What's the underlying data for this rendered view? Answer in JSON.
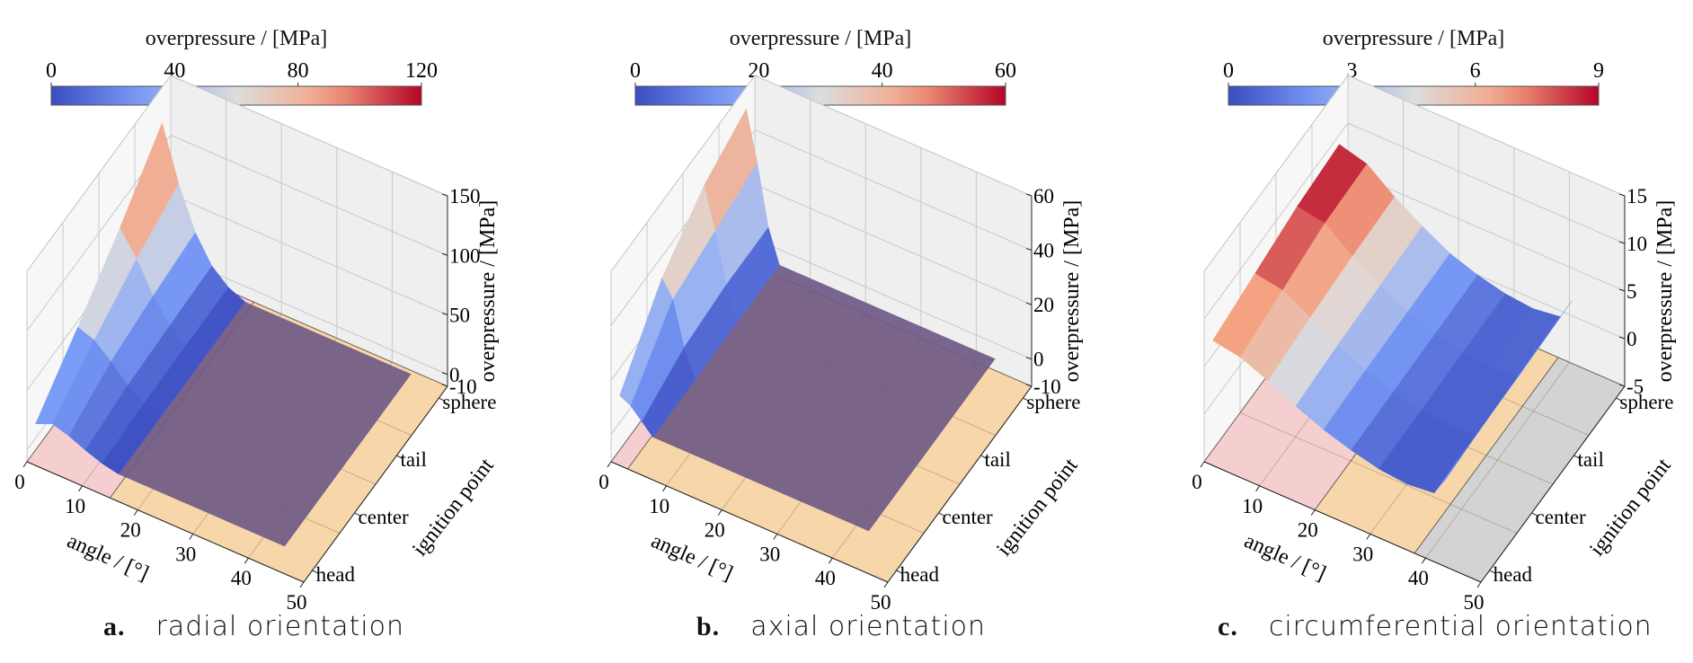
{
  "figure": {
    "panels": [
      {
        "id": "a",
        "label": "a.",
        "caption": "radial orientation"
      },
      {
        "id": "b",
        "label": "b.",
        "caption": "axial orientation"
      },
      {
        "id": "c",
        "label": "c.",
        "caption": "circumferential orientation"
      }
    ]
  },
  "chart_data": [
    {
      "type": "surface3d",
      "title": "radial orientation",
      "colorbar": {
        "label": "overpressure / [MPa]",
        "ticks": [
          "0",
          "40",
          "80",
          "120"
        ],
        "range": [
          0,
          120
        ],
        "colormap": "coolwarm"
      },
      "xlabel": "angle / [°]",
      "ylabel": "ignition point",
      "zlabel": "overpressure / [MPa]",
      "x_ticks": [
        "0",
        "10",
        "20",
        "30",
        "40",
        "50"
      ],
      "x_range": [
        0,
        50
      ],
      "y_ticks": [
        "head",
        "center",
        "tail",
        "sphere"
      ],
      "z_ticks": [
        "-10",
        "0",
        "50",
        "100",
        "150"
      ],
      "z_range": [
        -10,
        150
      ],
      "floor_regions": [
        {
          "from": 0,
          "to": 15,
          "color": "#f5cfcf"
        },
        {
          "from": 15,
          "to": 50,
          "color": "#f7d6a9"
        }
      ],
      "flat_region": {
        "from": 15,
        "to": 45,
        "color": "#6f5a86",
        "value": 0
      },
      "surface_x": [
        0,
        3,
        6,
        9,
        12,
        15
      ],
      "surface_series": [
        {
          "name": "head",
          "values": [
            12,
            18,
            14,
            8,
            3,
            0
          ]
        },
        {
          "name": "center",
          "values": [
            45,
            40,
            28,
            14,
            5,
            0
          ]
        },
        {
          "name": "tail",
          "values": [
            80,
            60,
            35,
            16,
            6,
            0
          ]
        },
        {
          "name": "sphere",
          "values": [
            120,
            75,
            40,
            18,
            6,
            0
          ]
        }
      ]
    },
    {
      "type": "surface3d",
      "title": "axial orientation",
      "colorbar": {
        "label": "overpressure / [MPa]",
        "ticks": [
          "0",
          "20",
          "40",
          "60"
        ],
        "range": [
          0,
          60
        ],
        "colormap": "coolwarm"
      },
      "xlabel": "angle / [°]",
      "ylabel": "ignition point",
      "zlabel": "overpressure / [MPa]",
      "x_ticks": [
        "0",
        "10",
        "20",
        "30",
        "40",
        "50"
      ],
      "x_range": [
        0,
        50
      ],
      "y_ticks": [
        "head",
        "center",
        "tail",
        "sphere"
      ],
      "z_ticks": [
        "-10",
        "0",
        "20",
        "40",
        "60"
      ],
      "z_range": [
        -10,
        60
      ],
      "floor_regions": [
        {
          "from": 0,
          "to": 3,
          "color": "#f5cfcf"
        },
        {
          "from": 3,
          "to": 50,
          "color": "#f7d6a9"
        }
      ],
      "flat_region": {
        "from": 6,
        "to": 45,
        "color": "#6f5a86",
        "value": 0
      },
      "surface_x": [
        0,
        2,
        4,
        6
      ],
      "surface_series": [
        {
          "name": "head",
          "values": [
            10,
            8,
            4,
            0
          ]
        },
        {
          "name": "center",
          "values": [
            32,
            26,
            10,
            0
          ]
        },
        {
          "name": "tail",
          "values": [
            45,
            30,
            12,
            0
          ]
        },
        {
          "name": "sphere",
          "values": [
            52,
            34,
            12,
            0
          ]
        }
      ]
    },
    {
      "type": "surface3d",
      "title": "circumferential orientation",
      "colorbar": {
        "label": "overpressure / [MPa]",
        "ticks": [
          "0",
          "3",
          "6",
          "9"
        ],
        "range": [
          0,
          9
        ],
        "colormap": "coolwarm"
      },
      "xlabel": "angle / [°]",
      "ylabel": "ignition point",
      "zlabel": "overpressure / [MPa]",
      "x_ticks": [
        "0",
        "10",
        "20",
        "30",
        "40",
        "50"
      ],
      "x_range": [
        0,
        50
      ],
      "y_ticks": [
        "head",
        "center",
        "tail",
        "sphere"
      ],
      "z_ticks": [
        "-5",
        "0",
        "5",
        "10",
        "15"
      ],
      "z_range": [
        -5,
        15
      ],
      "floor_regions": [
        {
          "from": 0,
          "to": 20,
          "color": "#f5cfcf"
        },
        {
          "from": 20,
          "to": 38,
          "color": "#f7d6a9"
        },
        {
          "from": 38,
          "to": 50,
          "color": "#d3d3d3"
        }
      ],
      "flat_region": null,
      "surface_x": [
        0,
        5,
        10,
        15,
        20,
        25,
        30,
        35,
        40,
        42
      ],
      "surface_series": [
        {
          "name": "head",
          "values": [
            6.5,
            6.0,
            4.8,
            3.4,
            2.2,
            1.3,
            0.6,
            0.3,
            0.6,
            2.5
          ]
        },
        {
          "name": "center",
          "values": [
            7.5,
            7.0,
            5.4,
            3.8,
            2.4,
            1.4,
            0.7,
            0.4,
            0.7,
            2.8
          ]
        },
        {
          "name": "tail",
          "values": [
            8.5,
            8.0,
            5.8,
            4.0,
            2.5,
            1.5,
            0.8,
            0.5,
            0.8,
            3.0
          ]
        },
        {
          "name": "sphere",
          "values": [
            9.0,
            8.2,
            6.0,
            4.2,
            2.6,
            1.6,
            0.9,
            0.6,
            1.0,
            3.2
          ]
        }
      ]
    }
  ]
}
